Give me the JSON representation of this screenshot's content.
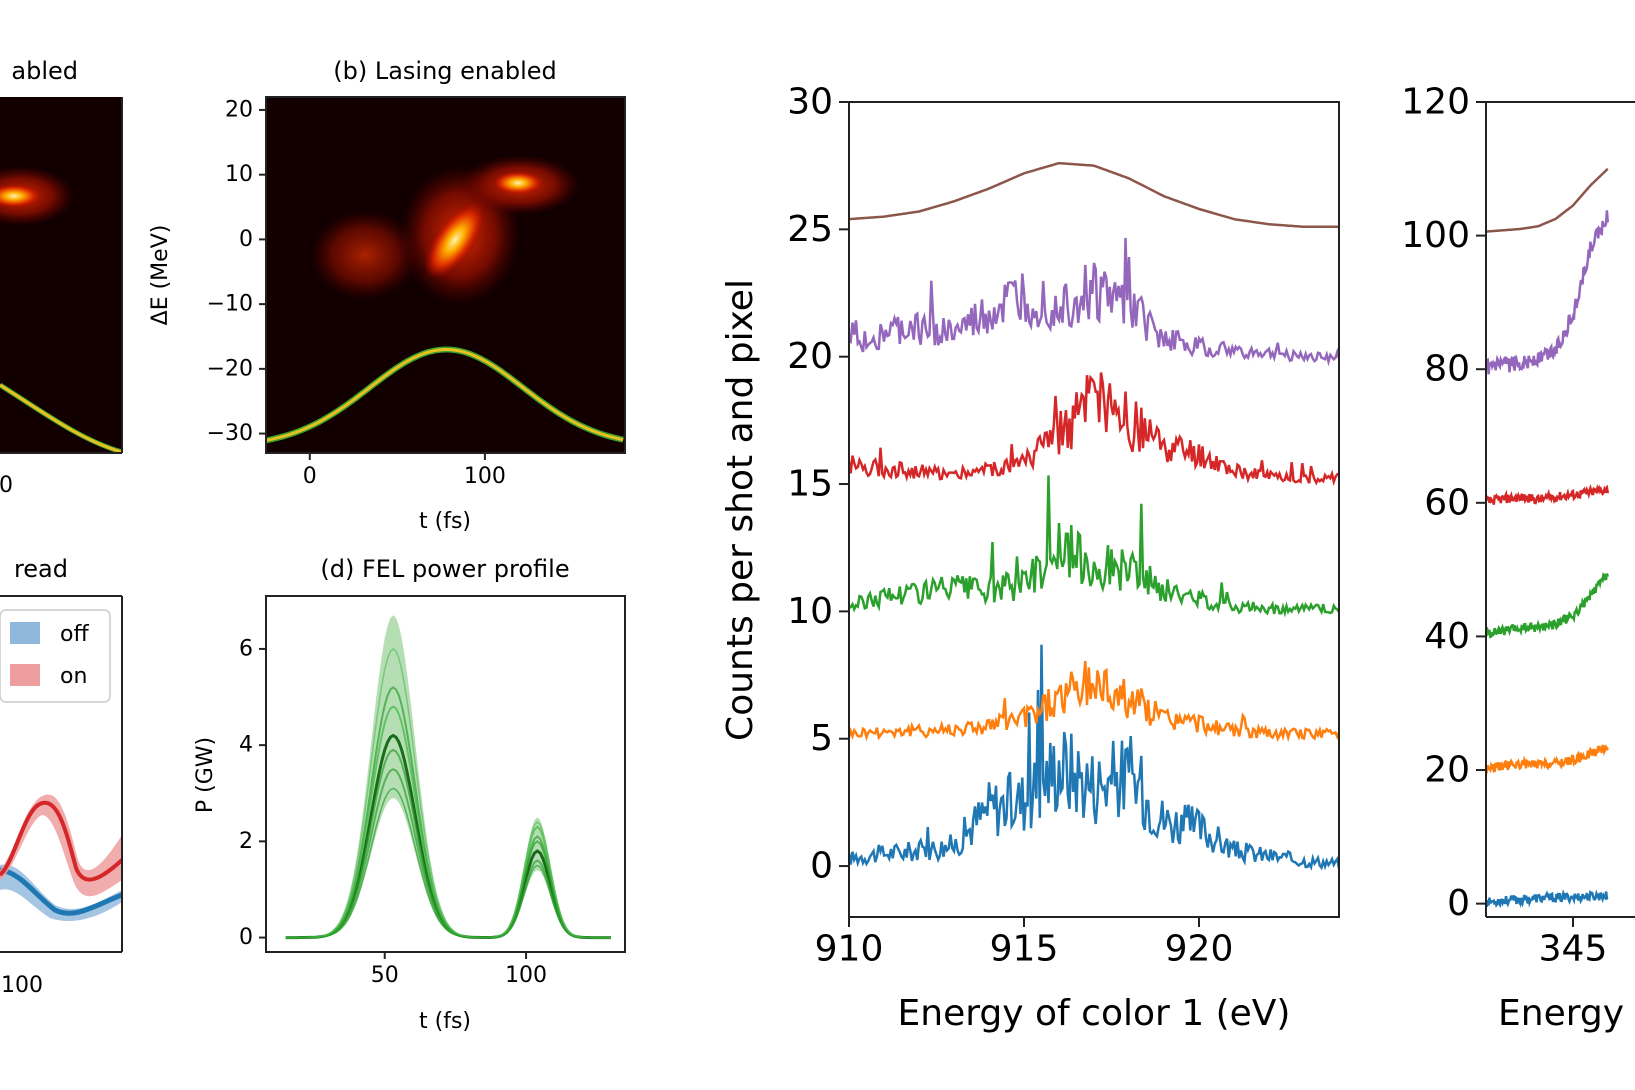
{
  "colors": {
    "blue": "#1f77b4",
    "orange": "#ff7f0e",
    "green": "#2ca02c",
    "red": "#d62728",
    "purple": "#9467bd",
    "brown": "#8c564b",
    "heat_bg": "#120000",
    "yellow": "#e8c020"
  },
  "panel_a": {
    "title": "abled",
    "x_tick": "0"
  },
  "panel_b": {
    "title": "(b) Lasing enabled",
    "ylabel": "ΔE (MeV)",
    "xlabel": "t (fs)",
    "y_ticks": [
      "20",
      "10",
      "0",
      "−10",
      "−20",
      "−30"
    ],
    "x_ticks": [
      "0",
      "100"
    ]
  },
  "panel_c": {
    "title": "read",
    "x_tick": "100",
    "legend": [
      {
        "label": "off",
        "color": "#8fb8dc"
      },
      {
        "label": "on",
        "color": "#ef9ea0"
      }
    ]
  },
  "panel_d": {
    "title": "(d) FEL power profile",
    "ylabel": "P (GW)",
    "xlabel": "t (fs)",
    "y_ticks": [
      "6",
      "4",
      "2",
      "0"
    ],
    "x_ticks": [
      "50",
      "100"
    ]
  },
  "panel_e": {
    "ylabel": "Counts per shot and pixel",
    "xlabel": "Energy of color 1 (eV)",
    "y_ticks": [
      "30",
      "25",
      "20",
      "15",
      "10",
      "5",
      "0"
    ],
    "x_ticks": [
      "910",
      "915",
      "920"
    ]
  },
  "panel_f": {
    "xlabel": "Energy",
    "y_ticks": [
      "120",
      "100",
      "80",
      "60",
      "40",
      "20",
      "0"
    ],
    "x_ticks": [
      "345"
    ]
  },
  "chart_data": [
    {
      "type": "heatmap",
      "panel": "(b) Lasing enabled",
      "title": "(b) Lasing enabled",
      "xlabel": "t (fs)",
      "ylabel": "ΔE (MeV)",
      "xlim": [
        -25,
        180
      ],
      "ylim": [
        -33,
        22
      ],
      "overlay_curve": {
        "x": [
          -25,
          0,
          25,
          50,
          78,
          100,
          125,
          150,
          180
        ],
        "y": [
          -32,
          -29,
          -24,
          -19,
          -17,
          -19,
          -24,
          -29,
          -32
        ]
      }
    },
    {
      "type": "line",
      "panel": "(d) FEL power profile",
      "title": "(d) FEL power profile",
      "xlabel": "t (fs)",
      "ylabel": "P (GW)",
      "xlim": [
        8,
        135
      ],
      "ylim": [
        -0.3,
        7.1
      ],
      "series": [
        {
          "x": [
            15,
            30,
            40,
            50,
            53,
            60,
            70,
            80,
            90,
            100,
            104,
            110,
            120,
            130
          ],
          "values": [
            0,
            0.1,
            1.6,
            4.0,
            4.2,
            3.3,
            1.2,
            0.3,
            0.3,
            1.6,
            1.8,
            1.2,
            0.2,
            0
          ]
        },
        {
          "x": [
            15,
            30,
            40,
            50,
            53,
            60,
            70,
            80,
            90,
            100,
            104,
            110,
            120,
            130
          ],
          "values": [
            0,
            0.2,
            2.6,
            6.4,
            6.7,
            5.0,
            1.6,
            0.3,
            0.4,
            2.2,
            2.5,
            1.7,
            0.3,
            0
          ]
        },
        {
          "x": [
            15,
            30,
            40,
            50,
            53,
            60,
            70,
            80,
            90,
            100,
            104,
            110,
            120,
            130
          ],
          "values": [
            0,
            0.1,
            1.2,
            2.7,
            2.9,
            2.3,
            0.8,
            0.2,
            0.2,
            1.2,
            1.4,
            0.9,
            0.1,
            0
          ]
        }
      ]
    },
    {
      "type": "line",
      "panel": "right-1",
      "xlabel": "Energy of color 1 (eV)",
      "ylabel": "Counts per shot and pixel",
      "xlim": [
        910,
        924
      ],
      "ylim": [
        -2,
        30
      ],
      "x": [
        910,
        911,
        912,
        913,
        914,
        915,
        916,
        917,
        918,
        919,
        920,
        921,
        922,
        923,
        924
      ],
      "series": [
        {
          "color": "blue",
          "values": [
            0.3,
            0.5,
            0.6,
            0.8,
            2.3,
            2.6,
            4.0,
            3.2,
            3.6,
            1.8,
            1.5,
            0.6,
            0.4,
            0.2,
            0.1
          ]
        },
        {
          "color": "orange",
          "values": [
            5.2,
            5.3,
            5.3,
            5.4,
            5.5,
            5.8,
            6.6,
            7.2,
            6.6,
            5.8,
            5.6,
            5.3,
            5.2,
            5.2,
            5.2
          ]
        },
        {
          "color": "green",
          "values": [
            10.2,
            10.6,
            10.8,
            10.9,
            10.8,
            11.1,
            12.5,
            11.8,
            11.7,
            10.8,
            10.5,
            10.2,
            10.1,
            10.1,
            10.1
          ]
        },
        {
          "color": "red",
          "values": [
            15.8,
            15.6,
            15.5,
            15.4,
            15.6,
            15.8,
            17.0,
            18.2,
            17.4,
            16.4,
            16.1,
            15.5,
            15.3,
            15.2,
            15.3
          ]
        },
        {
          "color": "purple",
          "values": [
            20.4,
            20.9,
            21.1,
            20.9,
            21.6,
            22.3,
            22.0,
            22.5,
            21.9,
            20.7,
            20.4,
            20.2,
            20.1,
            20.0,
            20.0
          ]
        },
        {
          "color": "brown",
          "values": [
            25.4,
            25.5,
            25.7,
            26.1,
            26.6,
            27.2,
            27.6,
            27.5,
            27.0,
            26.3,
            25.8,
            25.4,
            25.2,
            25.1,
            25.1
          ]
        }
      ]
    },
    {
      "type": "line",
      "panel": "right-2",
      "xlabel": "Energy",
      "xlim": [
        340,
        350
      ],
      "ylim": [
        -2,
        120
      ],
      "x": [
        340,
        341,
        342,
        343,
        344,
        345,
        346,
        347
      ],
      "series": [
        {
          "color": "blue",
          "values": [
            0.2,
            0.5,
            0.6,
            0.8,
            0.9,
            1.0,
            1.1,
            1.2
          ]
        },
        {
          "color": "orange",
          "values": [
            20.3,
            20.6,
            20.9,
            20.8,
            21.0,
            21.5,
            22.5,
            23.5
          ]
        },
        {
          "color": "green",
          "values": [
            40.4,
            40.8,
            41.2,
            41.4,
            41.9,
            43.0,
            46.0,
            49.5
          ]
        },
        {
          "color": "red",
          "values": [
            60.2,
            60.6,
            60.8,
            60.5,
            60.9,
            61.2,
            61.6,
            62.0
          ]
        },
        {
          "color": "purple",
          "values": [
            80.2,
            80.5,
            81.0,
            81.5,
            83.0,
            88.0,
            98.0,
            103.0
          ]
        },
        {
          "color": "brown",
          "values": [
            100.6,
            100.8,
            101.0,
            101.4,
            102.5,
            104.5,
            107.5,
            110.0
          ]
        }
      ]
    }
  ]
}
